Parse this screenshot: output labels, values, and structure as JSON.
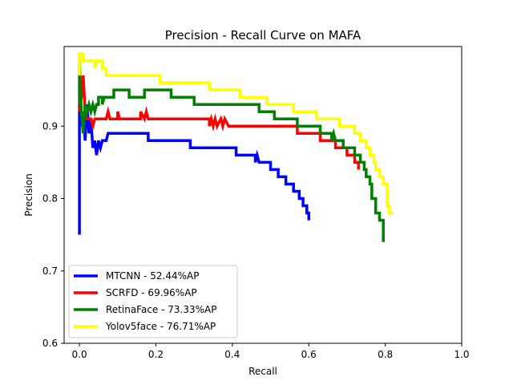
{
  "chart_data": {
    "type": "line",
    "title": "Precision - Recall Curve on MAFA",
    "xlabel": "Recall",
    "ylabel": "Precision",
    "xlim": [
      -0.04,
      1.0
    ],
    "ylim": [
      0.6,
      1.01
    ],
    "xticks": [
      0.0,
      0.2,
      0.4,
      0.6,
      0.8,
      1.0
    ],
    "xtick_labels": [
      "0.0",
      "0.2",
      "0.4",
      "0.6",
      "0.8",
      "1.0"
    ],
    "yticks": [
      0.6,
      0.7,
      0.8,
      0.9
    ],
    "ytick_labels": [
      "0.6",
      "0.7",
      "0.8",
      "0.9"
    ],
    "grid": false,
    "legend_position": "lower-left",
    "series": [
      {
        "name": "MTCNN - 52.44%AP",
        "color": "#0000ff",
        "points": [
          [
            0.0,
            0.75
          ],
          [
            0.0,
            0.93
          ],
          [
            0.005,
            0.9
          ],
          [
            0.01,
            0.92
          ],
          [
            0.015,
            0.88
          ],
          [
            0.02,
            0.93
          ],
          [
            0.025,
            0.89
          ],
          [
            0.03,
            0.91
          ],
          [
            0.035,
            0.87
          ],
          [
            0.04,
            0.88
          ],
          [
            0.045,
            0.86
          ],
          [
            0.05,
            0.88
          ],
          [
            0.055,
            0.87
          ],
          [
            0.06,
            0.88
          ],
          [
            0.07,
            0.88
          ],
          [
            0.075,
            0.89
          ],
          [
            0.18,
            0.89
          ],
          [
            0.18,
            0.88
          ],
          [
            0.29,
            0.88
          ],
          [
            0.29,
            0.87
          ],
          [
            0.41,
            0.87
          ],
          [
            0.41,
            0.86
          ],
          [
            0.46,
            0.86
          ],
          [
            0.46,
            0.85
          ],
          [
            0.465,
            0.86
          ],
          [
            0.47,
            0.85
          ],
          [
            0.5,
            0.85
          ],
          [
            0.5,
            0.84
          ],
          [
            0.52,
            0.84
          ],
          [
            0.52,
            0.83
          ],
          [
            0.54,
            0.83
          ],
          [
            0.54,
            0.82
          ],
          [
            0.56,
            0.82
          ],
          [
            0.56,
            0.81
          ],
          [
            0.575,
            0.81
          ],
          [
            0.575,
            0.8
          ],
          [
            0.585,
            0.8
          ],
          [
            0.585,
            0.79
          ],
          [
            0.595,
            0.79
          ],
          [
            0.595,
            0.78
          ],
          [
            0.6,
            0.78
          ],
          [
            0.6,
            0.77
          ]
        ]
      },
      {
        "name": "SCRFD - 69.96%AP",
        "color": "#ff0000",
        "points": [
          [
            0.0,
            0.92
          ],
          [
            0.005,
            0.94
          ],
          [
            0.01,
            0.97
          ],
          [
            0.015,
            0.92
          ],
          [
            0.02,
            0.91
          ],
          [
            0.03,
            0.91
          ],
          [
            0.035,
            0.9
          ],
          [
            0.04,
            0.91
          ],
          [
            0.07,
            0.91
          ],
          [
            0.075,
            0.92
          ],
          [
            0.08,
            0.91
          ],
          [
            0.1,
            0.91
          ],
          [
            0.1,
            0.92
          ],
          [
            0.105,
            0.91
          ],
          [
            0.16,
            0.91
          ],
          [
            0.16,
            0.92
          ],
          [
            0.17,
            0.91
          ],
          [
            0.175,
            0.92
          ],
          [
            0.18,
            0.91
          ],
          [
            0.34,
            0.91
          ],
          [
            0.34,
            0.9
          ],
          [
            0.345,
            0.91
          ],
          [
            0.35,
            0.9
          ],
          [
            0.355,
            0.91
          ],
          [
            0.36,
            0.9
          ],
          [
            0.37,
            0.91
          ],
          [
            0.375,
            0.9
          ],
          [
            0.38,
            0.91
          ],
          [
            0.39,
            0.9
          ],
          [
            0.57,
            0.9
          ],
          [
            0.57,
            0.89
          ],
          [
            0.63,
            0.89
          ],
          [
            0.63,
            0.88
          ],
          [
            0.67,
            0.88
          ],
          [
            0.67,
            0.87
          ],
          [
            0.7,
            0.87
          ],
          [
            0.7,
            0.86
          ],
          [
            0.72,
            0.86
          ],
          [
            0.72,
            0.85
          ],
          [
            0.73,
            0.85
          ],
          [
            0.73,
            0.84
          ]
        ]
      },
      {
        "name": "RetinaFace - 73.33%AP",
        "color": "#008000",
        "points": [
          [
            0.0,
            0.93
          ],
          [
            0.0,
            0.99
          ],
          [
            0.005,
            0.92
          ],
          [
            0.01,
            0.89
          ],
          [
            0.015,
            0.93
          ],
          [
            0.02,
            0.92
          ],
          [
            0.025,
            0.93
          ],
          [
            0.03,
            0.92
          ],
          [
            0.035,
            0.93
          ],
          [
            0.04,
            0.92
          ],
          [
            0.045,
            0.93
          ],
          [
            0.05,
            0.93
          ],
          [
            0.05,
            0.94
          ],
          [
            0.06,
            0.94
          ],
          [
            0.06,
            0.93
          ],
          [
            0.065,
            0.94
          ],
          [
            0.09,
            0.94
          ],
          [
            0.09,
            0.95
          ],
          [
            0.13,
            0.95
          ],
          [
            0.13,
            0.94
          ],
          [
            0.17,
            0.94
          ],
          [
            0.17,
            0.95
          ],
          [
            0.24,
            0.95
          ],
          [
            0.24,
            0.94
          ],
          [
            0.3,
            0.94
          ],
          [
            0.3,
            0.93
          ],
          [
            0.47,
            0.93
          ],
          [
            0.47,
            0.92
          ],
          [
            0.51,
            0.92
          ],
          [
            0.51,
            0.91
          ],
          [
            0.57,
            0.91
          ],
          [
            0.57,
            0.9
          ],
          [
            0.63,
            0.9
          ],
          [
            0.63,
            0.89
          ],
          [
            0.66,
            0.89
          ],
          [
            0.66,
            0.88
          ],
          [
            0.665,
            0.89
          ],
          [
            0.67,
            0.88
          ],
          [
            0.69,
            0.88
          ],
          [
            0.69,
            0.87
          ],
          [
            0.72,
            0.87
          ],
          [
            0.72,
            0.86
          ],
          [
            0.735,
            0.86
          ],
          [
            0.735,
            0.85
          ],
          [
            0.745,
            0.85
          ],
          [
            0.745,
            0.84
          ],
          [
            0.75,
            0.84
          ],
          [
            0.75,
            0.83
          ],
          [
            0.76,
            0.83
          ],
          [
            0.76,
            0.82
          ],
          [
            0.765,
            0.82
          ],
          [
            0.765,
            0.8
          ],
          [
            0.775,
            0.8
          ],
          [
            0.775,
            0.78
          ],
          [
            0.785,
            0.78
          ],
          [
            0.785,
            0.77
          ],
          [
            0.795,
            0.77
          ],
          [
            0.795,
            0.74
          ]
        ]
      },
      {
        "name": "Yolov5face - 76.71%AP",
        "color": "#ffff00",
        "points": [
          [
            0.0,
            0.97
          ],
          [
            0.0,
            1.0
          ],
          [
            0.01,
            1.0
          ],
          [
            0.01,
            0.99
          ],
          [
            0.04,
            0.99
          ],
          [
            0.04,
            0.98
          ],
          [
            0.045,
            0.99
          ],
          [
            0.06,
            0.99
          ],
          [
            0.06,
            0.98
          ],
          [
            0.07,
            0.98
          ],
          [
            0.07,
            0.97
          ],
          [
            0.21,
            0.97
          ],
          [
            0.21,
            0.96
          ],
          [
            0.34,
            0.96
          ],
          [
            0.34,
            0.95
          ],
          [
            0.42,
            0.95
          ],
          [
            0.42,
            0.94
          ],
          [
            0.49,
            0.94
          ],
          [
            0.49,
            0.93
          ],
          [
            0.56,
            0.93
          ],
          [
            0.56,
            0.92
          ],
          [
            0.62,
            0.92
          ],
          [
            0.62,
            0.91
          ],
          [
            0.68,
            0.91
          ],
          [
            0.68,
            0.9
          ],
          [
            0.72,
            0.9
          ],
          [
            0.72,
            0.89
          ],
          [
            0.735,
            0.89
          ],
          [
            0.735,
            0.88
          ],
          [
            0.75,
            0.88
          ],
          [
            0.75,
            0.87
          ],
          [
            0.76,
            0.87
          ],
          [
            0.76,
            0.86
          ],
          [
            0.77,
            0.86
          ],
          [
            0.77,
            0.85
          ],
          [
            0.775,
            0.85
          ],
          [
            0.775,
            0.84
          ],
          [
            0.785,
            0.84
          ],
          [
            0.785,
            0.83
          ],
          [
            0.795,
            0.83
          ],
          [
            0.795,
            0.82
          ],
          [
            0.805,
            0.82
          ],
          [
            0.805,
            0.79
          ],
          [
            0.81,
            0.79
          ],
          [
            0.81,
            0.78
          ],
          [
            0.82,
            0.78
          ]
        ]
      }
    ]
  }
}
